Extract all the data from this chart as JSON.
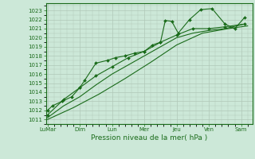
{
  "bg_color": "#cce8d8",
  "line_color": "#1a6b1a",
  "grid_color": "#b0c8b8",
  "xlabel": "Pression niveau de la mer( hPa )",
  "ylim": [
    1010.5,
    1023.8
  ],
  "yticks": [
    1011,
    1012,
    1013,
    1014,
    1015,
    1016,
    1017,
    1018,
    1019,
    1020,
    1021,
    1022,
    1023
  ],
  "xtick_labels": [
    "LuMar",
    "Dim",
    "Lun",
    "Mer",
    "Jeu",
    "Ven",
    "Sam"
  ],
  "xtick_positions": [
    0,
    1,
    2,
    3,
    4,
    5,
    6
  ],
  "xlim": [
    -0.05,
    6.35
  ],
  "line1_x": [
    0.0,
    0.15,
    0.45,
    0.75,
    1.0,
    1.15,
    1.5,
    1.85,
    2.1,
    2.4,
    2.7,
    3.0,
    3.25,
    3.5,
    3.65,
    3.85,
    4.05,
    4.4,
    4.75,
    5.1,
    5.5,
    5.8,
    6.1
  ],
  "line1_y": [
    1012.0,
    1012.5,
    1013.0,
    1013.5,
    1014.5,
    1015.3,
    1017.2,
    1017.5,
    1017.8,
    1018.0,
    1018.3,
    1018.5,
    1019.2,
    1019.5,
    1021.9,
    1021.8,
    1020.5,
    1022.0,
    1023.1,
    1023.2,
    1021.5,
    1021.0,
    1022.2
  ],
  "line2_x": [
    0.0,
    0.5,
    1.0,
    1.5,
    2.0,
    2.5,
    3.0,
    3.5,
    4.0,
    4.5,
    5.0,
    5.5,
    6.1
  ],
  "line2_y": [
    1011.5,
    1013.2,
    1014.5,
    1015.8,
    1016.8,
    1017.8,
    1018.5,
    1019.5,
    1020.3,
    1021.0,
    1021.0,
    1021.2,
    1021.5
  ],
  "line3_x": [
    0.0,
    0.5,
    1.0,
    1.5,
    2.0,
    2.5,
    3.0,
    3.5,
    4.0,
    4.5,
    5.0,
    5.5,
    6.1
  ],
  "line3_y": [
    1011.2,
    1012.5,
    1013.5,
    1014.8,
    1016.0,
    1017.0,
    1018.0,
    1019.0,
    1020.0,
    1020.5,
    1020.8,
    1021.0,
    1021.5
  ],
  "line4_x": [
    0.0,
    0.8,
    1.6,
    2.4,
    3.2,
    4.0,
    4.8,
    5.6,
    6.2
  ],
  "line4_y": [
    1011.0,
    1012.3,
    1013.8,
    1015.5,
    1017.3,
    1019.2,
    1020.5,
    1021.0,
    1021.3
  ]
}
